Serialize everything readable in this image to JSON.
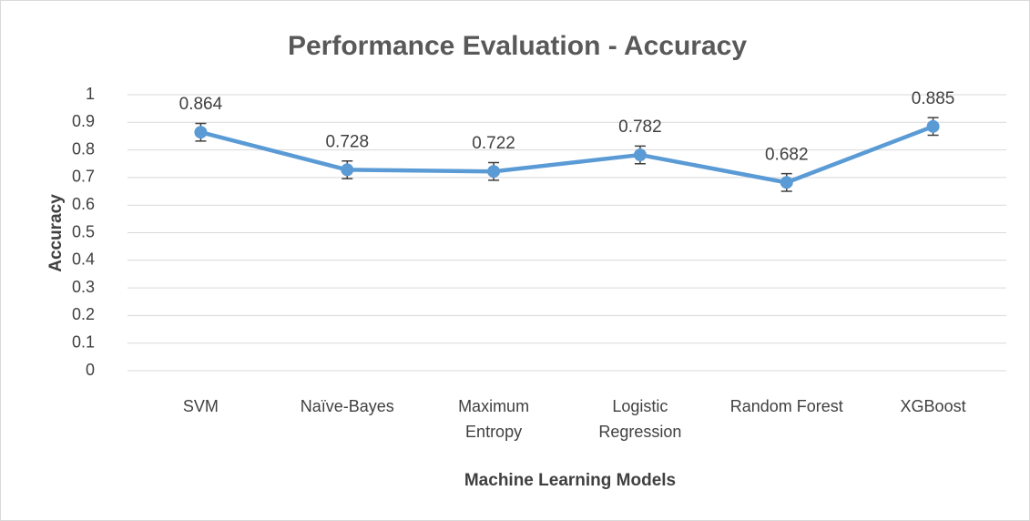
{
  "chart_data": {
    "type": "line",
    "title": "Performance Evaluation - Accuracy",
    "x_label": "Machine Learning Models",
    "y_label": "Accuracy",
    "categories": [
      "SVM",
      "Naïve-Bayes",
      "Maximum\nEntropy",
      "Logistic\nRegression",
      "Random Forest",
      "XGBoost"
    ],
    "series": [
      {
        "name": "Accuracy",
        "color": "#5b9bd5",
        "values": [
          0.864,
          0.728,
          0.722,
          0.782,
          0.682,
          0.885
        ],
        "errors": [
          0.032,
          0.032,
          0.032,
          0.032,
          0.032,
          0.032
        ]
      }
    ],
    "ylim": [
      0,
      1
    ],
    "yticks": [
      0,
      0.1,
      0.2,
      0.3,
      0.4,
      0.5,
      0.6,
      0.7,
      0.8,
      0.9,
      1
    ],
    "grid": true
  }
}
